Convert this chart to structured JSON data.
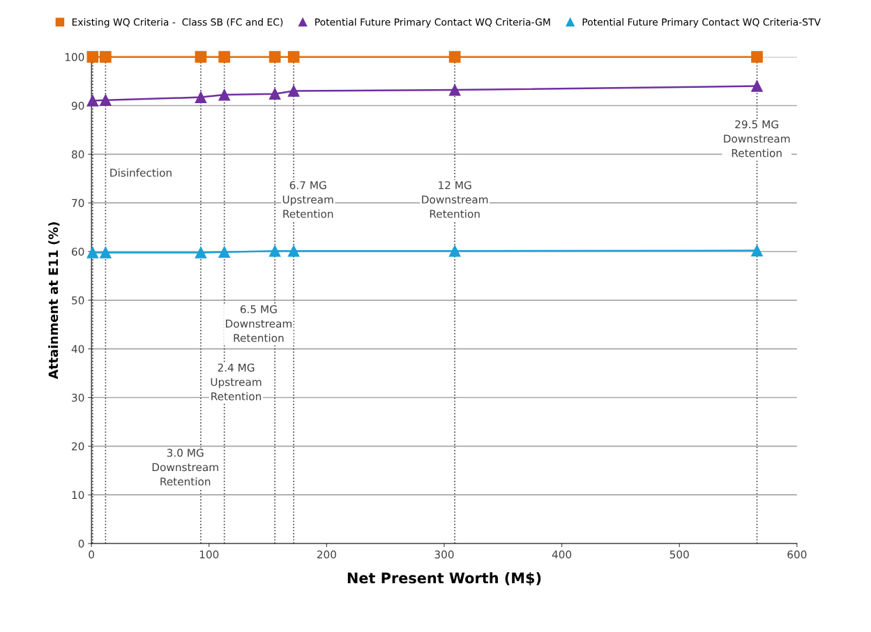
{
  "chart_data": {
    "type": "line",
    "xlabel": "Net Present Worth (M$)",
    "ylabel": "Attainment at E11 (%)",
    "x": [
      1,
      12,
      93,
      113,
      156,
      172,
      309,
      566
    ],
    "series": [
      {
        "name": "Existing WQ Criteria -  Class SB (FC and EC)",
        "color": "#e46c0a",
        "marker": "square",
        "values": [
          100,
          100,
          100,
          100,
          100,
          100,
          100,
          100
        ]
      },
      {
        "name": "Potential Future Primary Contact WQ Criteria-GM",
        "color": "#7030a0",
        "marker": "triangle",
        "values": [
          91,
          91.1,
          91.7,
          92.2,
          92.4,
          93,
          93.2,
          94
        ]
      },
      {
        "name": "Potential Future Primary Contact WQ Criteria-STV",
        "color": "#1ba1d8",
        "marker": "triangle",
        "values": [
          59.8,
          59.8,
          59.8,
          59.9,
          60.1,
          60.1,
          60.1,
          60.2
        ]
      }
    ],
    "xlim": [
      0,
      600
    ],
    "xticks": [
      0,
      100,
      200,
      300,
      400,
      500,
      600
    ],
    "ylim": [
      0,
      100
    ],
    "yticks": [
      0,
      10,
      20,
      30,
      40,
      50,
      60,
      70,
      80,
      90,
      100
    ],
    "grid": "y",
    "legend": "top",
    "line_style": "solid",
    "ref_lines": [
      {
        "axis": "x",
        "value": 1,
        "color": "#404040",
        "line_style": "dotted"
      },
      {
        "axis": "x",
        "value": 12,
        "color": "#404040",
        "line_style": "dotted"
      },
      {
        "axis": "x",
        "value": 93,
        "color": "#404040",
        "line_style": "dotted"
      },
      {
        "axis": "x",
        "value": 113,
        "color": "#404040",
        "line_style": "dotted"
      },
      {
        "axis": "x",
        "value": 156,
        "color": "#404040",
        "line_style": "dotted"
      },
      {
        "axis": "x",
        "value": 172,
        "color": "#404040",
        "line_style": "dotted"
      },
      {
        "axis": "x",
        "value": 309,
        "color": "#404040",
        "line_style": "dotted"
      },
      {
        "axis": "x",
        "value": 566,
        "color": "#404040",
        "line_style": "dotted"
      }
    ],
    "annotations": [
      "Disinfection",
      "3.0 MG\nDownstream\nRetention",
      "2.4 MG\nUpstream\nRetention",
      "6.5 MG\nDownstream\nRetention",
      "6.7 MG\nUpstream\nRetention",
      "12 MG\nDownstream\nRetention",
      "29.5 MG\nDownstream\nRetention"
    ]
  }
}
